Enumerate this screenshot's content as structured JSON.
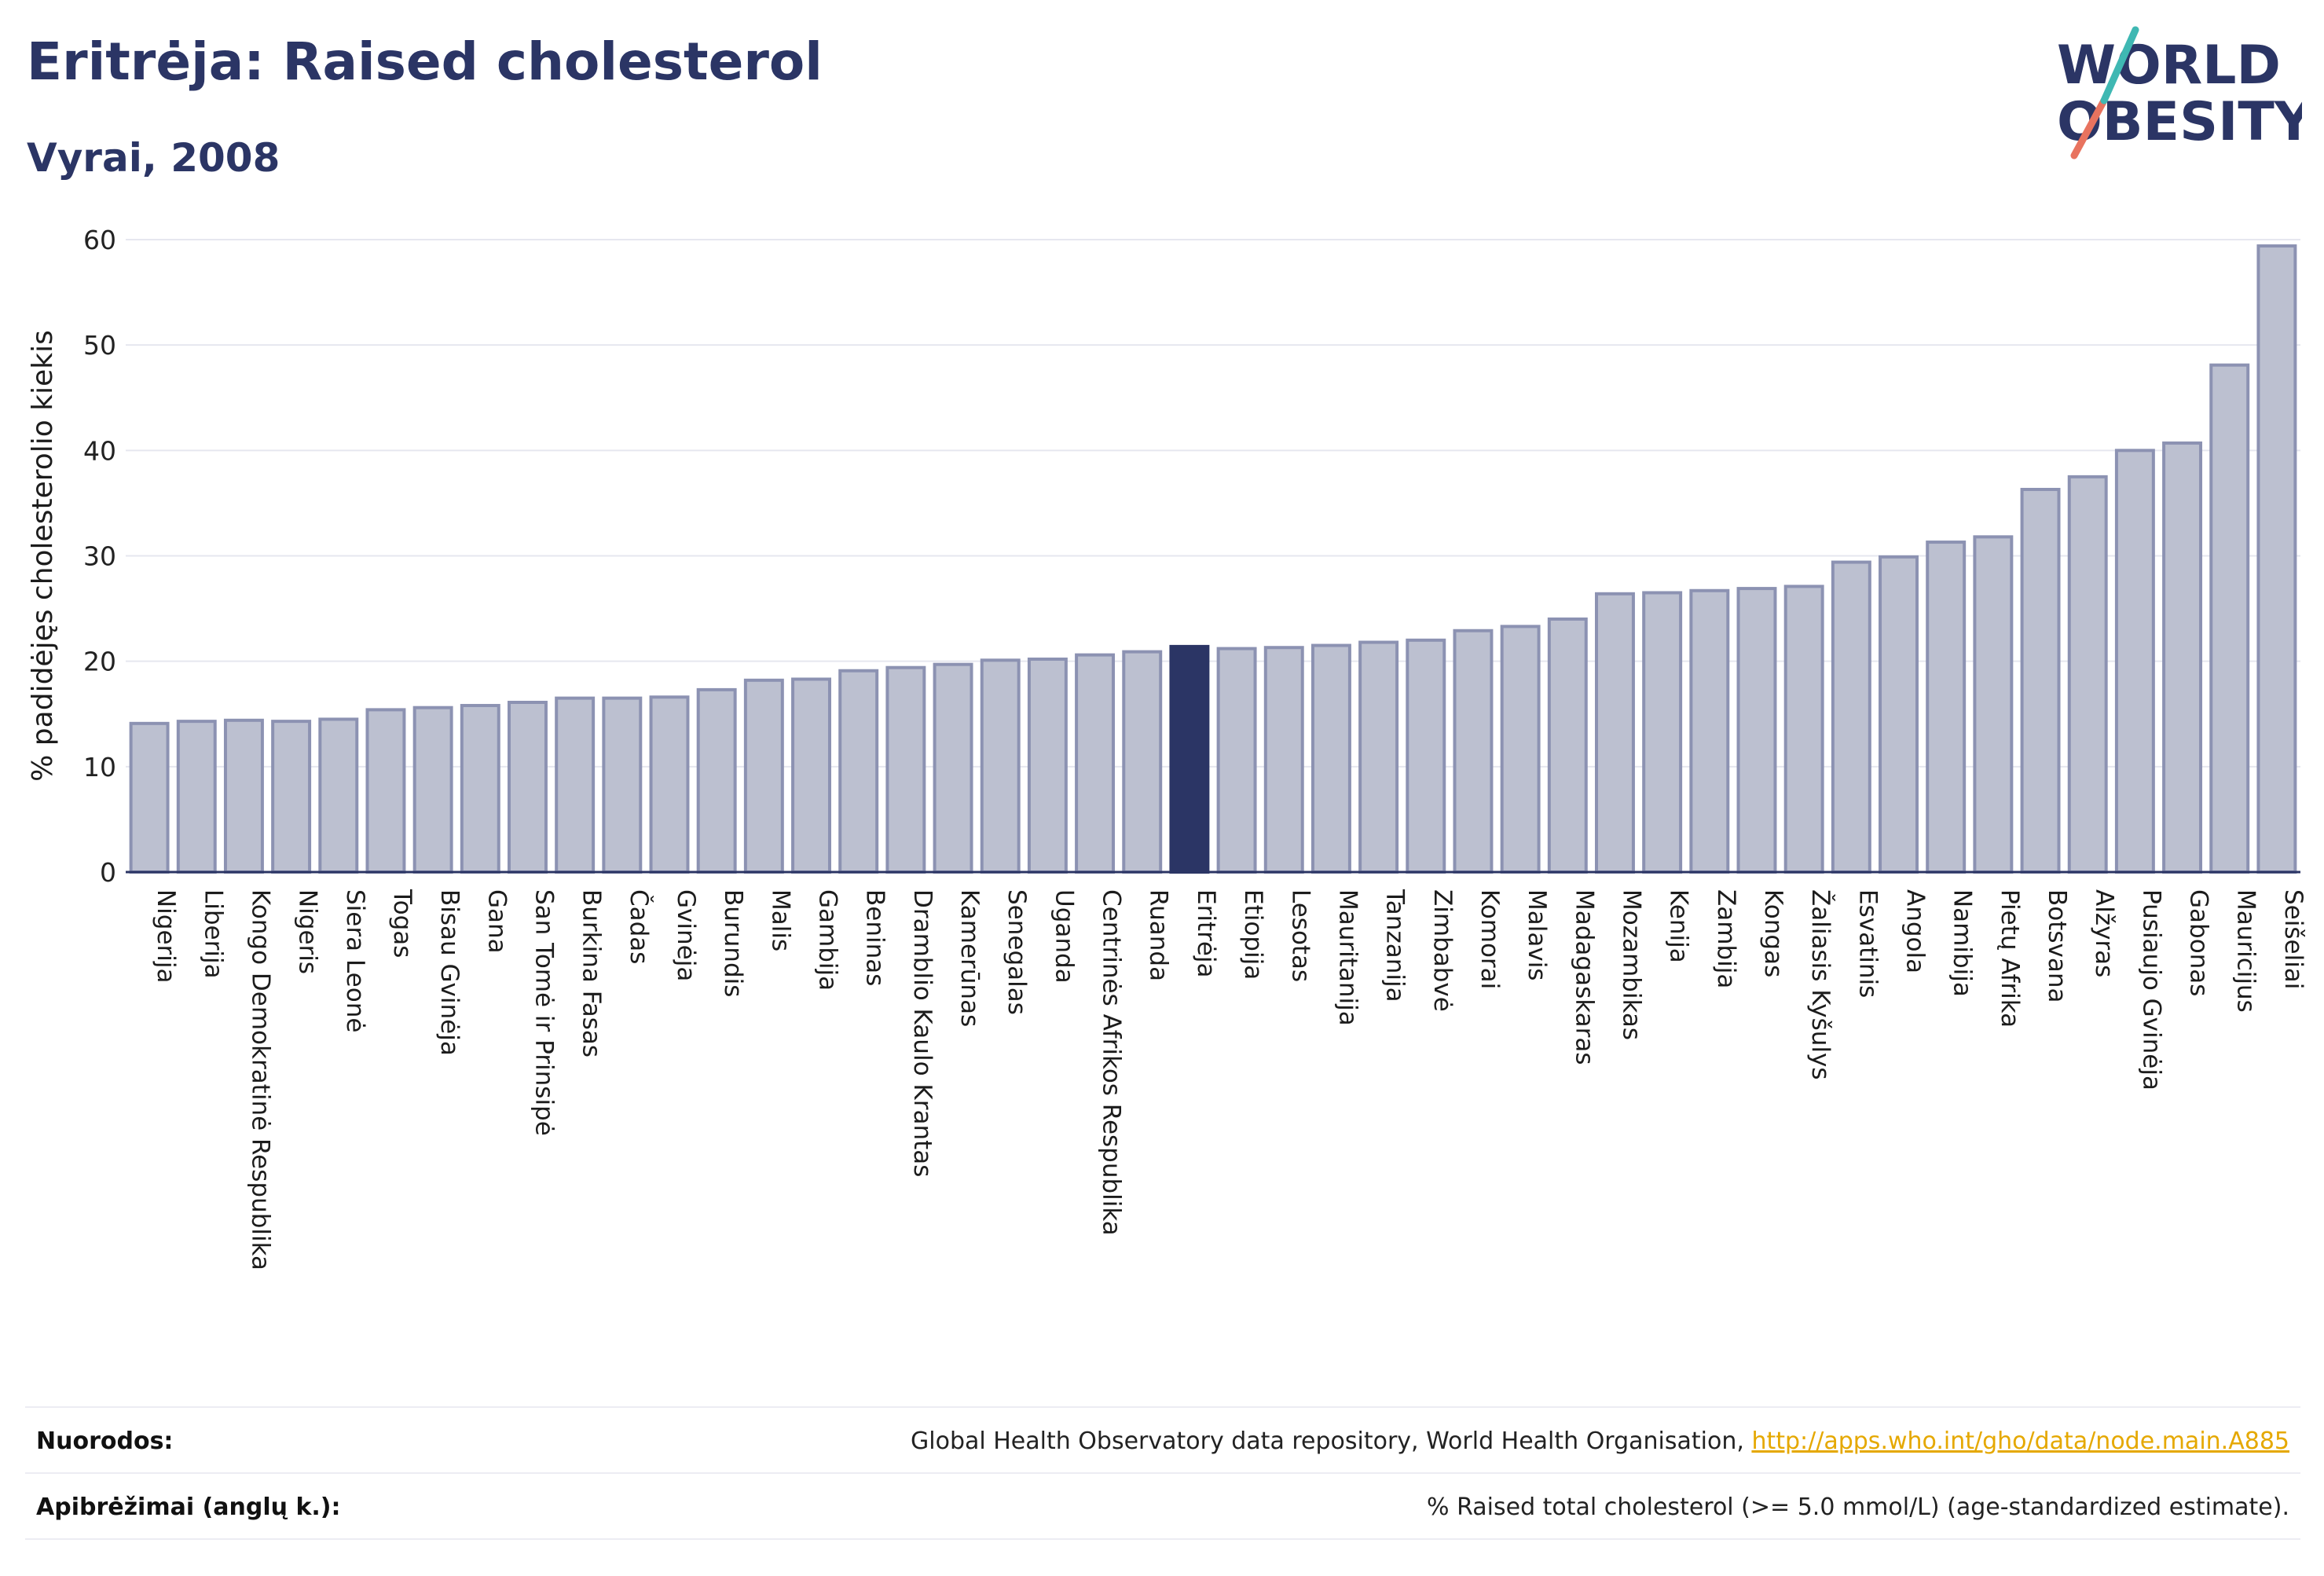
{
  "header": {
    "title": "Eritrėja: Raised cholesterol",
    "subtitle": "Vyrai, 2008"
  },
  "logo": {
    "line1": "WORLD",
    "line2": "OBESITY",
    "colors": {
      "text": "#2b3565",
      "slash_coral": "#e8735f",
      "slash_teal": "#3fb8b3"
    }
  },
  "chart_data": {
    "type": "bar",
    "ylabel": "% padidėjęs cholesterolio kiekis",
    "ylim": [
      0,
      60
    ],
    "yticks": [
      0,
      10,
      20,
      30,
      40,
      50,
      60
    ],
    "grid": true,
    "highlight": "Eritrėja",
    "colors": {
      "bar": "#bcc0d0",
      "bar_edge": "#8c92b2",
      "highlight": "#2b3565"
    },
    "categories": [
      "Nigerija",
      "Liberija",
      "Kongo Demokratinė Respublika",
      "Nigeris",
      "Siera Leonė",
      "Togas",
      "Bisau Gvinėja",
      "Gana",
      "San Tomė ir Prinsipė",
      "Burkina Fasas",
      "Čadas",
      "Gvinėja",
      "Burundis",
      "Malis",
      "Gambija",
      "Beninas",
      "Dramblio Kaulo Krantas",
      "Kamerūnas",
      "Senegalas",
      "Uganda",
      "Centrinės Afrikos Respublika",
      "Ruanda",
      "Eritrėja",
      "Etiopija",
      "Lesotas",
      "Mauritanija",
      "Tanzanija",
      "Zimbabvė",
      "Komorai",
      "Malavis",
      "Madagaskaras",
      "Mozambikas",
      "Kenija",
      "Zambija",
      "Kongas",
      "Žaliasis Kyšulys",
      "Esvatinis",
      "Angola",
      "Namibija",
      "Pietų Afrika",
      "Botsvana",
      "Alžyras",
      "Pusiaujo Gvinėja",
      "Gabonas",
      "Mauricijus",
      "Seišeliai"
    ],
    "values": [
      14.1,
      14.3,
      14.4,
      14.3,
      14.5,
      15.4,
      15.6,
      15.8,
      16.1,
      16.5,
      16.5,
      16.6,
      17.3,
      18.2,
      18.3,
      19.1,
      19.4,
      19.7,
      20.1,
      20.2,
      20.6,
      20.9,
      21.4,
      21.2,
      21.3,
      21.5,
      21.8,
      22.0,
      22.9,
      23.3,
      24.0,
      26.4,
      26.5,
      26.7,
      26.9,
      27.1,
      29.4,
      29.9,
      31.3,
      31.8,
      36.3,
      37.5,
      40.0,
      40.7,
      48.1,
      59.4
    ]
  },
  "footer": {
    "sources_label": "Nuorodos:",
    "sources_text": "Global Health Observatory data repository, World Health Organisation, ",
    "sources_link": "http://apps.who.int/gho/data/node.main.A885",
    "definitions_label": "Apibrėžimai (anglų k.):",
    "definitions_text": "% Raised total cholesterol (>= 5.0 mmol/L) (age-standardized estimate)."
  }
}
